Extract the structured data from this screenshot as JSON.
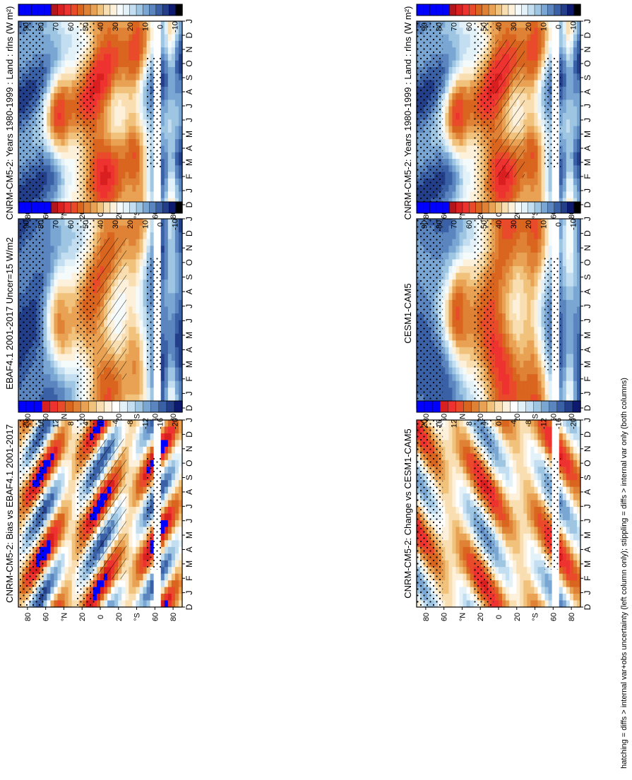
{
  "footnote": "hatching = diffs > internal var+obs uncertainty (left column only); stippling = diffs > internal var only (both columns)",
  "colors": {
    "abs_scale": [
      "#000000",
      "#0d1a70",
      "#233f8a",
      "#3a60a6",
      "#5b85bf",
      "#7aa6d4",
      "#9ec6e3",
      "#c2def0",
      "#e3f1f8",
      "#f5fbfb",
      "#fdf1dc",
      "#f8deb0",
      "#f1c27c",
      "#e9a254",
      "#df8236",
      "#d9651f",
      "#e84a2a",
      "#ee3230",
      "#da1f20",
      "#b3151c",
      "#0000ff",
      "#0000ff",
      "#0000ff",
      "#0000ff",
      "#0000ff"
    ],
    "diff_scale": [
      "#0d1a70",
      "#233f8a",
      "#3a60a6",
      "#5b85bf",
      "#7aa6d4",
      "#9ec6e3",
      "#c2def0",
      "#e3f1f8",
      "#ffffff",
      "#fdf1dc",
      "#f8deb0",
      "#f1c27c",
      "#e9a254",
      "#df8236",
      "#d9651f",
      "#e84a2a",
      "#ee3230",
      "#da1f20",
      "#0000ff",
      "#0000ff",
      "#0000ff"
    ],
    "missing": "#ffffff"
  },
  "chart_data": [
    {
      "type": "heatmap",
      "title": "CNRM-CM5-2: Years 1980-1999 : Land : rlns (W m²)",
      "x_ticks": [
        "D",
        "J",
        "F",
        "M",
        "A",
        "M",
        "J",
        "J",
        "A",
        "S",
        "O",
        "N",
        "D",
        "J"
      ],
      "y_ticks": [
        "80",
        "60",
        "°N",
        "20",
        "0",
        "20",
        "°S",
        "60",
        "80"
      ],
      "y_range": [
        -90,
        90
      ],
      "colorbar": [
        "90",
        "80",
        "70",
        "60",
        "50",
        "40",
        "30",
        "20",
        "10",
        "0",
        "-10"
      ],
      "colorbar_range": [
        -20,
        100
      ],
      "hatching": true,
      "stippling": true,
      "kind": "model"
    },
    {
      "type": "heatmap",
      "title": "CNRM-CM5-2: Years 1980-1999 : Land : rlns (W m²)",
      "x_ticks": [
        "D",
        "J",
        "F",
        "M",
        "A",
        "M",
        "J",
        "J",
        "A",
        "S",
        "O",
        "N",
        "D",
        "J"
      ],
      "y_ticks": [
        "80",
        "60",
        "°N",
        "20",
        "0",
        "20",
        "°S",
        "60",
        "80"
      ],
      "y_range": [
        -90,
        90
      ],
      "colorbar": [
        "90",
        "80",
        "70",
        "60",
        "50",
        "40",
        "30",
        "20",
        "10",
        "0",
        "-10"
      ],
      "colorbar_range": [
        -20,
        100
      ],
      "hatching": false,
      "stippling": true,
      "kind": "model"
    },
    {
      "type": "heatmap",
      "title": "EBAF4.1 2001-2017 Uncer=15 W/m2",
      "x_ticks": [
        "D",
        "J",
        "F",
        "M",
        "A",
        "M",
        "J",
        "J",
        "A",
        "S",
        "O",
        "N",
        "D",
        "J"
      ],
      "y_ticks": [
        "80",
        "60",
        "°N",
        "20",
        "0",
        "20",
        "°S",
        "60",
        "80"
      ],
      "y_range": [
        -90,
        90
      ],
      "colorbar": [
        "90",
        "80",
        "70",
        "60",
        "50",
        "40",
        "30",
        "20",
        "10",
        "0",
        "-10"
      ],
      "colorbar_range": [
        -20,
        100
      ],
      "hatching": true,
      "stippling": true,
      "kind": "obs"
    },
    {
      "type": "heatmap",
      "title": "CESM1-CAM5",
      "x_ticks": [
        "D",
        "J",
        "F",
        "M",
        "A",
        "M",
        "J",
        "J",
        "A",
        "S",
        "O",
        "N",
        "D",
        "J"
      ],
      "y_ticks": [
        "80",
        "60",
        "°N",
        "20",
        "0",
        "20",
        "°S",
        "60",
        "80"
      ],
      "y_range": [
        -90,
        90
      ],
      "colorbar": [
        "90",
        "80",
        "70",
        "60",
        "50",
        "40",
        "30",
        "20",
        "10",
        "0",
        "-10"
      ],
      "colorbar_range": [
        -20,
        100
      ],
      "hatching": false,
      "stippling": true,
      "kind": "ref"
    },
    {
      "type": "heatmap",
      "title": "CNRM-CM5-2: Bias vs EBAF4.1 2001-2017",
      "x_ticks": [
        "D",
        "J",
        "F",
        "M",
        "A",
        "M",
        "J",
        "J",
        "A",
        "S",
        "O",
        "N",
        "D",
        "J"
      ],
      "y_ticks": [
        "80",
        "60",
        "°N",
        "20",
        "0",
        "20",
        "°S",
        "60",
        "80"
      ],
      "y_range": [
        -90,
        90
      ],
      "colorbar": [
        "20",
        "16",
        "12",
        "8",
        "4",
        "0",
        "-4",
        "-8",
        "-12",
        "-16",
        "-20"
      ],
      "colorbar_range": [
        -22,
        22
      ],
      "hatching": true,
      "stippling": true,
      "kind": "bias"
    },
    {
      "type": "heatmap",
      "title": "CNRM-CM5-2: Change vs CESM1-CAM5",
      "x_ticks": [
        "D",
        "J",
        "F",
        "M",
        "A",
        "M",
        "J",
        "J",
        "A",
        "S",
        "O",
        "N",
        "D",
        "J"
      ],
      "y_ticks": [
        "80",
        "60",
        "°N",
        "20",
        "0",
        "20",
        "°S",
        "60",
        "80"
      ],
      "y_range": [
        -90,
        90
      ],
      "colorbar": [
        "20",
        "16",
        "12",
        "8",
        "4",
        "0",
        "-4",
        "-8",
        "-12",
        "-16",
        "-20"
      ],
      "colorbar_range": [
        -22,
        22
      ],
      "hatching": false,
      "stippling": true,
      "kind": "change"
    }
  ]
}
